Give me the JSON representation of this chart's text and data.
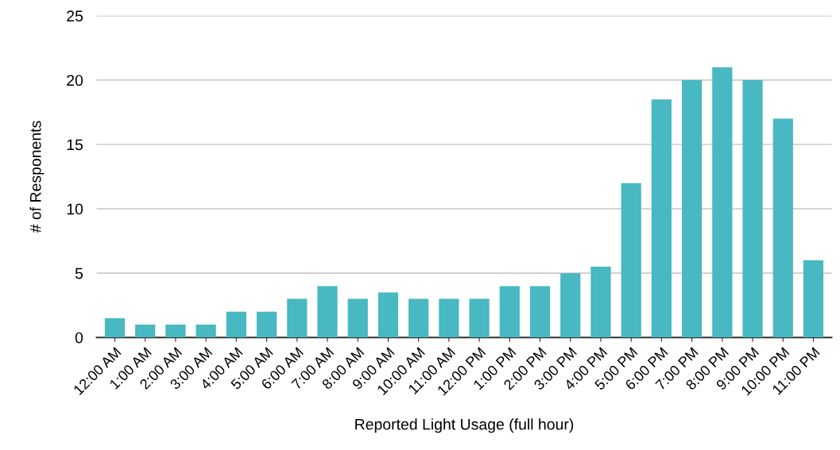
{
  "chart_data": {
    "type": "bar",
    "xlabel": "Reported Light Usage (full hour)",
    "ylabel": "# of Responents",
    "categories": [
      "12:00 AM",
      "1:00 AM",
      "2:00 AM",
      "3:00 AM",
      "4:00 AM",
      "5:00 AM",
      "6:00 AM",
      "7:00 AM",
      "8:00 AM",
      "9:00 AM",
      "10:00 AM",
      "11:00 AM",
      "12:00 PM",
      "1:00 PM",
      "2:00 PM",
      "3:00 PM",
      "4:00 PM",
      "5:00 PM",
      "6:00 PM",
      "7:00 PM",
      "8:00 PM",
      "9:00 PM",
      "10:00 PM",
      "11:00 PM"
    ],
    "values": [
      1.5,
      1,
      1,
      1,
      2,
      2,
      3,
      4,
      3,
      3.5,
      3,
      3,
      3,
      4,
      4,
      5,
      5.5,
      12,
      18.5,
      20,
      21,
      20,
      17,
      6
    ],
    "color": "#48b8c2",
    "ylim": [
      0,
      25
    ],
    "yticks": [
      0,
      5,
      10,
      15,
      20,
      25
    ],
    "grid": "y",
    "legend": false
  }
}
